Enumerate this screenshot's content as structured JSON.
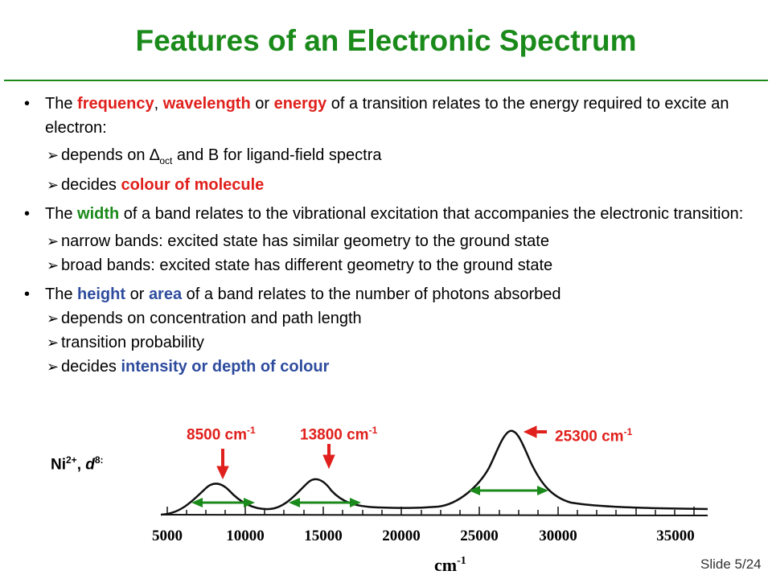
{
  "title": "Features of an Electronic Spectrum",
  "bullets": {
    "b1": {
      "p1": "The ",
      "k1": "frequency",
      "p2": ", ",
      "k2": "wavelength",
      "p3": " or ",
      "k3": "energy",
      "p4": " of a transition relates to the energy required to excite an electron:",
      "s1a": "depends on ",
      "s1sym": "∆",
      "s1sub": "oct",
      "s1b": " and B for ligand-field spectra",
      "s2a": "decides ",
      "s2k": "colour of molecule"
    },
    "b2": {
      "p1": "The ",
      "k1": "width",
      "p2": " of a band relates to the vibrational excitation that accompanies the electronic transition:",
      "s1": "narrow bands: excited state has similar geometry to the ground state",
      "s2": "broad bands: excited state has different geometry to the ground state"
    },
    "b3": {
      "p1": "The ",
      "k1": "height",
      "p2": " or ",
      "k2": "area",
      "p3": " of a band relates to the number of photons absorbed",
      "s1": "depends on concentration and path length",
      "s2": "transition probability",
      "s3a": "decides ",
      "s3k": "intensity or depth of colour"
    }
  },
  "bullet_glyph": "•",
  "arrow_glyph": "➢",
  "spectrum": {
    "ion": {
      "symbol": "Ni",
      "charge": "2+",
      "sep": ", ",
      "d": "d",
      "dsup": "8:"
    },
    "peak_labels": [
      {
        "main": "8500 cm",
        "sup": "-1"
      },
      {
        "main": "13800 cm",
        "sup": "-1"
      },
      {
        "main": "25300 cm",
        "sup": "-1"
      }
    ],
    "axis_ticks": [
      "5000",
      "10000",
      "15000",
      "20000",
      "25000",
      "30000",
      "35000"
    ],
    "axis_label": "cm",
    "axis_label_sup": "-1"
  },
  "slide_number": "Slide 5/24",
  "colors": {
    "title": "#1a8a1a",
    "frequency_terms": "#e0201c",
    "width_terms": "#1a8a1a",
    "height_terms": "#2e4c9e",
    "arrows": "#e0201c",
    "band_width_arrows": "#1a8a1a"
  }
}
